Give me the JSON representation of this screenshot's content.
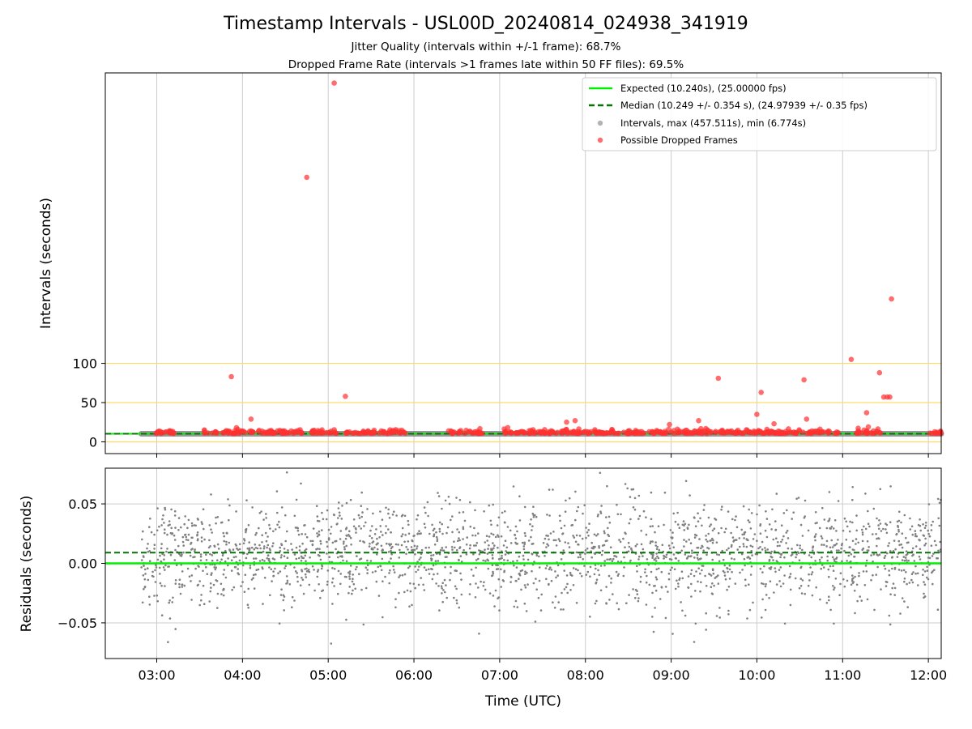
{
  "title": "Timestamp Intervals - USL00D_20240814_024938_341919",
  "subtitle_jitter": "Jitter Quality (intervals within +/-1 frame): 68.7%",
  "subtitle_dropped": "Dropped Frame Rate (intervals >1 frames late within 50 FF files): 69.5%",
  "colors": {
    "expected": "#00ee00",
    "median": "#007700",
    "intervals": "#808080",
    "dropped": "#ff3030",
    "hline": "#ffd966",
    "grid": "#cccccc"
  },
  "chart_data": [
    {
      "type": "scatter",
      "panel": "intervals",
      "ylabel": "Intervals (seconds)",
      "xlabel": "",
      "xlim_hours": [
        2.4,
        12.15
      ],
      "ylim": [
        -15,
        470
      ],
      "yticks": [
        0,
        50,
        100
      ],
      "yticklabels": [
        "0",
        "50",
        "100"
      ],
      "horizontal_lines": [
        0,
        50,
        100
      ],
      "grid_x": true,
      "legend_position": "top-right",
      "legend": {
        "expected": "Expected (10.240s), (25.00000 fps)",
        "median": "Median (10.249 +/- 0.354 s), (24.97939 +/- 0.35 fps)",
        "intervals": "Intervals, max (457.511s), min (6.774s)",
        "dropped": "Possible Dropped Frames"
      },
      "expected": 10.24,
      "median": 10.249,
      "interval_band_hours": [
        2.82,
        12.15
      ],
      "interval_typical_seconds": 10.24,
      "dropped_frames_outliers": [
        {
          "t": 3.87,
          "y": 83
        },
        {
          "t": 3.93,
          "y": 18
        },
        {
          "t": 4.1,
          "y": 29
        },
        {
          "t": 4.75,
          "y": 337
        },
        {
          "t": 5.07,
          "y": 457
        },
        {
          "t": 5.2,
          "y": 58
        },
        {
          "t": 7.78,
          "y": 25
        },
        {
          "t": 7.88,
          "y": 27
        },
        {
          "t": 8.98,
          "y": 22
        },
        {
          "t": 9.32,
          "y": 27
        },
        {
          "t": 9.55,
          "y": 81
        },
        {
          "t": 10.0,
          "y": 35
        },
        {
          "t": 10.05,
          "y": 63
        },
        {
          "t": 10.2,
          "y": 23
        },
        {
          "t": 10.55,
          "y": 79
        },
        {
          "t": 10.58,
          "y": 29
        },
        {
          "t": 11.1,
          "y": 105
        },
        {
          "t": 11.28,
          "y": 37
        },
        {
          "t": 11.3,
          "y": 19
        },
        {
          "t": 11.43,
          "y": 88
        },
        {
          "t": 11.48,
          "y": 57
        },
        {
          "t": 11.52,
          "y": 57
        },
        {
          "t": 11.55,
          "y": 57
        },
        {
          "t": 11.57,
          "y": 182
        }
      ],
      "dropped_frames_dense_spans_hours": [
        [
          2.95,
          3.2
        ],
        [
          3.55,
          4.7
        ],
        [
          4.8,
          5.1
        ],
        [
          5.2,
          5.9
        ],
        [
          6.4,
          6.8
        ],
        [
          7.05,
          10.95
        ],
        [
          11.15,
          11.45
        ],
        [
          12.0,
          12.15
        ]
      ]
    },
    {
      "type": "scatter",
      "panel": "residuals",
      "ylabel": "Residuals (seconds)",
      "xlabel": "Time (UTC)",
      "xlim_hours": [
        2.4,
        12.15
      ],
      "ylim": [
        -0.08,
        0.08
      ],
      "yticks": [
        -0.05,
        0.0,
        0.05
      ],
      "yticklabels": [
        "−0.05",
        "0.00",
        "0.05"
      ],
      "xticks_hours": [
        3,
        4,
        5,
        6,
        7,
        8,
        9,
        10,
        11,
        12
      ],
      "xticklabels": [
        "03:00",
        "04:00",
        "05:00",
        "06:00",
        "07:00",
        "08:00",
        "09:00",
        "10:00",
        "11:00",
        "12:00"
      ],
      "grid": true,
      "expected_residual": 0.0,
      "median_residual": 0.009,
      "residual_spread_sd": 0.022,
      "residual_center": 0.007,
      "data_span_hours": [
        2.82,
        12.15
      ]
    }
  ]
}
